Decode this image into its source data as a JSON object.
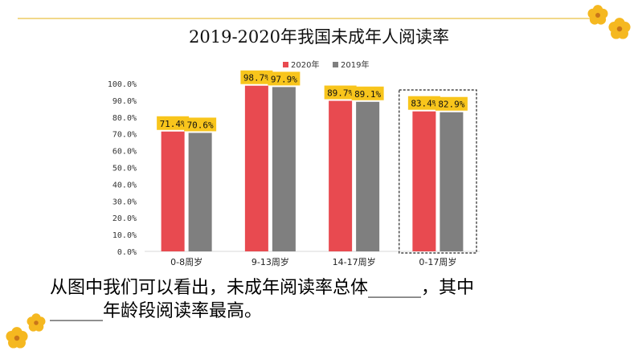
{
  "page": {
    "title": "2019-2020年我国未成年人阅读率",
    "question_line1": "从图中我们可以看出，未成年阅读率总体______，其中",
    "question_line2": "______年龄段阅读率最高。"
  },
  "chart_data": {
    "type": "bar",
    "title": "",
    "xlabel": "",
    "ylabel": "",
    "categories": [
      "0-8周岁",
      "9-13周岁",
      "14-17周岁",
      "0-17周岁"
    ],
    "series": [
      {
        "name": "2020年",
        "values": [
          71.4,
          98.7,
          89.7,
          83.4
        ],
        "labels": [
          "71.4%",
          "98.7%",
          "89.7%",
          "83.4%"
        ],
        "color": "#e84a50"
      },
      {
        "name": "2019年",
        "values": [
          70.6,
          97.9,
          89.1,
          82.9
        ],
        "labels": [
          "70.6%",
          "97.9%",
          "89.1%",
          "82.9%"
        ],
        "color": "#7f7f7f"
      }
    ],
    "y_ticks": [
      "0.0%",
      "10.0%",
      "20.0%",
      "30.0%",
      "40.0%",
      "50.0%",
      "60.0%",
      "70.0%",
      "80.0%",
      "90.0%",
      "100.0%"
    ],
    "ylim": [
      0,
      100
    ],
    "legend_position": "top",
    "highlighted_category": "0-17周岁",
    "label_background": "#f8c51c",
    "grid": false
  },
  "decor": {
    "flower_color": "#f5b820",
    "flower_center": "#c9761a"
  }
}
